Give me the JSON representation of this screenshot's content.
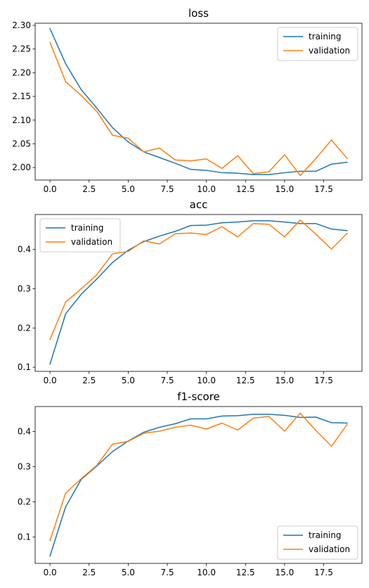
{
  "chart_data": [
    {
      "type": "line",
      "title": "loss",
      "xlabel": "",
      "ylabel": "",
      "xlim": [
        -0.95,
        19.95
      ],
      "ylim": [
        1.9735,
        2.3045
      ],
      "xticks": [
        0.0,
        2.5,
        5.0,
        7.5,
        10.0,
        12.5,
        15.0,
        17.5
      ],
      "xtick_labels": [
        "0.0",
        "2.5",
        "5.0",
        "7.5",
        "10.0",
        "12.5",
        "15.0",
        "17.5"
      ],
      "yticks": [
        2.0,
        2.05,
        2.1,
        2.15,
        2.2,
        2.25,
        2.3
      ],
      "ytick_labels": [
        "2.00",
        "2.05",
        "2.10",
        "2.15",
        "2.20",
        "2.25",
        "2.30"
      ],
      "legend_position": "top-right",
      "grid": false,
      "x": [
        0,
        1,
        2,
        3,
        4,
        5,
        6,
        7,
        8,
        9,
        10,
        11,
        12,
        13,
        14,
        15,
        16,
        17,
        18,
        19
      ],
      "series": [
        {
          "name": "training",
          "color": "#1f77b4",
          "values": [
            2.293,
            2.219,
            2.164,
            2.125,
            2.084,
            2.054,
            2.033,
            2.021,
            2.009,
            1.996,
            1.994,
            1.989,
            1.988,
            1.985,
            1.985,
            1.989,
            1.992,
            1.992,
            2.007,
            2.011
          ]
        },
        {
          "name": "validation",
          "color": "#ff7f0e",
          "values": [
            2.264,
            2.181,
            2.152,
            2.118,
            2.068,
            2.062,
            2.033,
            2.041,
            2.016,
            2.014,
            2.018,
            1.998,
            2.025,
            1.987,
            1.991,
            2.027,
            1.983,
            2.019,
            2.058,
            2.019
          ]
        }
      ]
    },
    {
      "type": "line",
      "title": "acc",
      "xlabel": "",
      "ylabel": "",
      "xlim": [
        -0.95,
        19.95
      ],
      "ylim": [
        0.0895,
        0.489
      ],
      "xticks": [
        0.0,
        2.5,
        5.0,
        7.5,
        10.0,
        12.5,
        15.0,
        17.5
      ],
      "xtick_labels": [
        "0.0",
        "2.5",
        "5.0",
        "7.5",
        "10.0",
        "12.5",
        "15.0",
        "17.5"
      ],
      "yticks": [
        0.1,
        0.2,
        0.3,
        0.4
      ],
      "ytick_labels": [
        "0.1",
        "0.2",
        "0.3",
        "0.4"
      ],
      "legend_position": "top-left",
      "grid": false,
      "x": [
        0,
        1,
        2,
        3,
        4,
        5,
        6,
        7,
        8,
        9,
        10,
        11,
        12,
        13,
        14,
        15,
        16,
        17,
        18,
        19
      ],
      "series": [
        {
          "name": "training",
          "color": "#1f77b4",
          "values": [
            0.108,
            0.236,
            0.286,
            0.325,
            0.367,
            0.398,
            0.42,
            0.434,
            0.446,
            0.461,
            0.462,
            0.468,
            0.47,
            0.473,
            0.473,
            0.47,
            0.466,
            0.466,
            0.452,
            0.448
          ]
        },
        {
          "name": "validation",
          "color": "#ff7f0e",
          "values": [
            0.171,
            0.266,
            0.3,
            0.336,
            0.389,
            0.395,
            0.422,
            0.414,
            0.44,
            0.442,
            0.438,
            0.458,
            0.432,
            0.466,
            0.464,
            0.432,
            0.475,
            0.439,
            0.401,
            0.441
          ]
        }
      ]
    },
    {
      "type": "line",
      "title": "f1-score",
      "xlabel": "",
      "ylabel": "",
      "xlim": [
        -0.95,
        19.95
      ],
      "ylim": [
        0.025,
        0.471
      ],
      "xticks": [
        0.0,
        2.5,
        5.0,
        7.5,
        10.0,
        12.5,
        15.0,
        17.5
      ],
      "xtick_labels": [
        "0.0",
        "2.5",
        "5.0",
        "7.5",
        "10.0",
        "12.5",
        "15.0",
        "17.5"
      ],
      "yticks": [
        0.1,
        0.2,
        0.3,
        0.4
      ],
      "ytick_labels": [
        "0.1",
        "0.2",
        "0.3",
        "0.4"
      ],
      "legend_position": "bottom-right",
      "grid": false,
      "x": [
        0,
        1,
        2,
        3,
        4,
        5,
        6,
        7,
        8,
        9,
        10,
        11,
        12,
        13,
        14,
        15,
        16,
        17,
        18,
        19
      ],
      "series": [
        {
          "name": "training",
          "color": "#1f77b4",
          "values": [
            0.046,
            0.186,
            0.264,
            0.302,
            0.343,
            0.373,
            0.398,
            0.412,
            0.422,
            0.436,
            0.436,
            0.444,
            0.445,
            0.449,
            0.449,
            0.446,
            0.44,
            0.441,
            0.425,
            0.424
          ]
        },
        {
          "name": "validation",
          "color": "#ff7f0e",
          "values": [
            0.09,
            0.225,
            0.266,
            0.304,
            0.364,
            0.372,
            0.395,
            0.401,
            0.412,
            0.418,
            0.407,
            0.424,
            0.404,
            0.438,
            0.443,
            0.401,
            0.452,
            0.403,
            0.358,
            0.42
          ]
        }
      ]
    }
  ]
}
